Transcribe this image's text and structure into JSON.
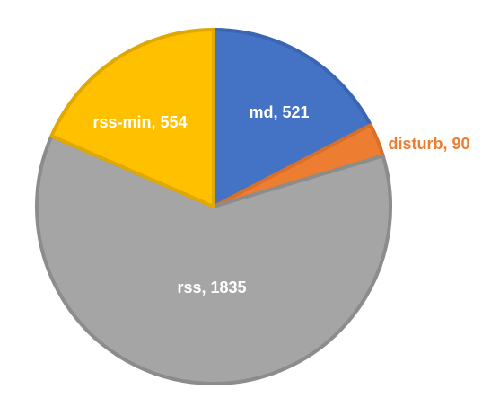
{
  "chart_data": {
    "type": "pie",
    "title": "",
    "start_angle_deg": 0,
    "direction": "clockwise",
    "slices": [
      {
        "label": "md",
        "value": 521,
        "data_label": "md, 521",
        "color": "#4472C4",
        "border": "#3A65B0",
        "label_color": "#FFFFFF"
      },
      {
        "label": "disturb",
        "value": 90,
        "data_label": "disturb, 90",
        "color": "#ED7D31",
        "border": "#D9702A",
        "label_color": "#ED7D31"
      },
      {
        "label": "rss",
        "value": 1835,
        "data_label": "rss, 1835",
        "color": "#A5A5A5",
        "border": "#8C8C8C",
        "label_color": "#FFFFFF"
      },
      {
        "label": "rss-min",
        "value": 554,
        "data_label": "rss-min, 554",
        "color": "#FFC000",
        "border": "#E0A800",
        "label_color": "#FFFFFF"
      }
    ],
    "legend": "none"
  }
}
